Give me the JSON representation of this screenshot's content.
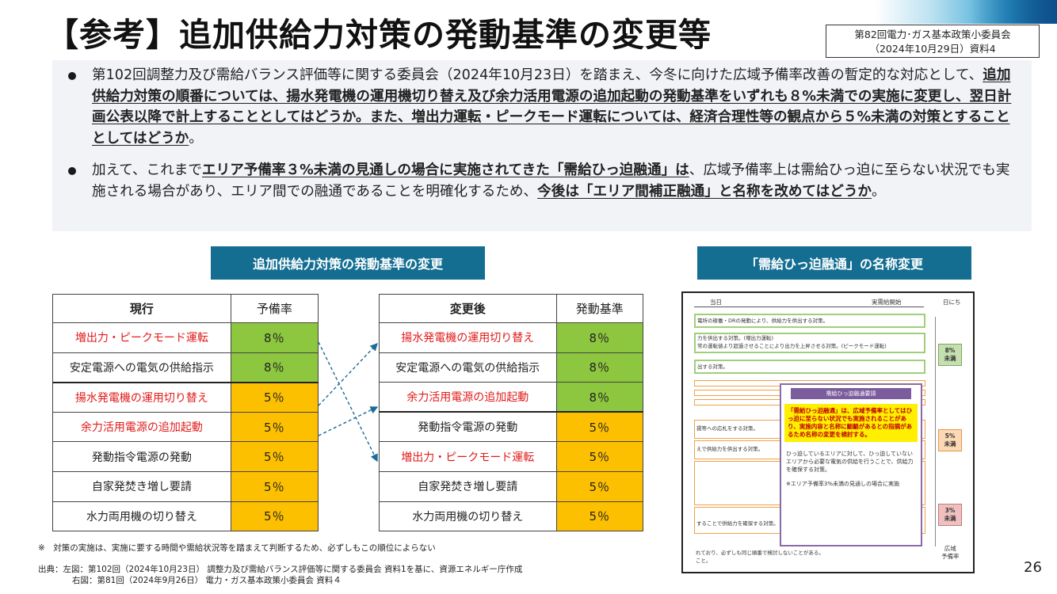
{
  "title": "【参考】追加供給力対策の発動基準の変更等",
  "meeting": {
    "line1": "第82回電力･ガス基本政策小委員会",
    "line2": "（2024年10月29日）資料4"
  },
  "summary": {
    "bullet1": {
      "pre": "第102回調整力及び需給バランス評価等に関する委員会（2024年10月23日）を踏まえ、今冬に向けた広域予備率改善の暫定的な対応として、",
      "bold": "追加供給力対策の順番については、揚水発電機の運用機切り替え及び余力活用電源の追加起動の発動基準をいずれも８%未満での実施に変更し、翌日計画公表以降で計上することとしてはどうか。また、増出力運転・ピークモード運転については、経済合理性等の観点から５%未満の対策とすることとしてはどうか",
      "post": "。"
    },
    "bullet2": {
      "pre": "加えて、これまで",
      "bold1": "エリア予備率３%未満の見通しの場合に実施されてきた「需給ひっ迫融通」は",
      "mid": "、広域予備率上は需給ひっ迫に至らない状況でも実施される場合があり、エリア間での融通であることを明確化するため、",
      "bold2": "今後は「エリア間補正融通」と名称を改めてはどうか",
      "post": "。"
    }
  },
  "labels": {
    "left": "追加供給力対策の発動基準の変更",
    "right": "「需給ひっ迫融通」の名称変更"
  },
  "left_table": {
    "headers": [
      "現行",
      "予備率"
    ],
    "rows": [
      {
        "name": "増出力・ピークモード運転",
        "value": "8％"
      },
      {
        "name": "安定電源への電気の供給指示",
        "value": "8％"
      },
      {
        "name": "揚水発電機の運用切り替え",
        "value": "5％"
      },
      {
        "name": "余力活用電源の追加起動",
        "value": "5％"
      },
      {
        "name": "発動指令電源の発動",
        "value": "5％"
      },
      {
        "name": "自家発焚き増し要請",
        "value": "5％"
      },
      {
        "name": "水力両用機の切り替え",
        "value": "5％"
      }
    ]
  },
  "right_table": {
    "headers": [
      "変更後",
      "発動基準"
    ],
    "rows": [
      {
        "name": "揚水発電機の運用切り替え",
        "value": "8％"
      },
      {
        "name": "安定電源への電気の供給指示",
        "value": "8％"
      },
      {
        "name": "余力活用電源の追加起動",
        "value": "8％"
      },
      {
        "name": "発動指令電源の発動",
        "value": "5％"
      },
      {
        "name": "増出力・ピークモード運転",
        "value": "5％"
      },
      {
        "name": "自家発焚き増し要請",
        "value": "5％"
      },
      {
        "name": "水力両用機の切り替え",
        "value": "5％"
      }
    ]
  },
  "note": "※　対策の実施は、実施に要する時間や需給状況等を踏まえて判断するため、必ずしもこの順位によらない",
  "source": {
    "line1": "出典：左図：第102回（2024年10月23日）  調整力及び需給バランス評価等に関する委員会 資料1を基に、資源エネルギー庁作成",
    "line2": "右図：第81回（2024年9月26日）     電力・ガス基本政策小委員会   資料４"
  },
  "page_number": "26",
  "diagram": {
    "hdr_left": "当日",
    "hdr_mid": "実需給開始",
    "hdr_right": "日にち",
    "box1": "電所の稼働・DRの発動により、供給力を供出する対策。",
    "box2a": "力を供出する対策。(増出力運転)",
    "box2b": "常の運転値より超過させることにより出力を上昇させる対策。(ピークモード運転)",
    "box3": "出する対策。",
    "box4": "揚等への応札をする対策。",
    "box5": "えで供給力を供出する対策。",
    "box6": "することで供給力を確保する対策。",
    "bottom_text": "れており、必ずしも同じ順番で検討しないことがある。",
    "bottom_text2": "こと。",
    "tag1": "8%\n未満",
    "tag2": "5%\n未満",
    "tag3": "3%\n未満",
    "bottom_label": "広域\n予備率",
    "popup_head": "需給ひっ迫融通要請",
    "popup_yellow": "「需給ひっ迫融通」は、広域予備率としてはひっ迫に至らない状況でも実施されることがあり、実施内容と名称に齟齬があるとの指摘があるため名称の変更を検討する。",
    "popup_text": "ひっ迫しているエリアに対して、ひっ迫していないエリアから必要な電気の供給を行うことで、供給力を確保する対策。",
    "popup_note": "※エリア予備率3%未満の見通しの場合に実施"
  }
}
